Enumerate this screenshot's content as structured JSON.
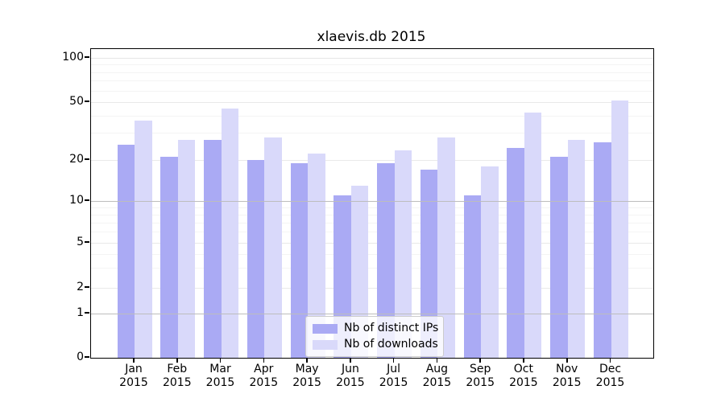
{
  "figure": {
    "title": "xlaevis.db 2015"
  },
  "chart_data": {
    "type": "bar",
    "title": "xlaevis.db 2015",
    "categories": [
      "Jan",
      "Feb",
      "Mar",
      "Apr",
      "May",
      "Jun",
      "Jul",
      "Aug",
      "Sep",
      "Oct",
      "Nov",
      "Dec"
    ],
    "x_tick_second_line": "2015",
    "x_tick_labels": [
      "Jan 2015",
      "Feb 2015",
      "Mar 2015",
      "Apr 2015",
      "May 2015",
      "Jun 2015",
      "Jul 2015",
      "Aug 2015",
      "Sep 2015",
      "Oct 2015",
      "Nov 2015",
      "Dec 2015"
    ],
    "series": [
      {
        "name": "Nb of distinct IPs",
        "color": "#aaaaf4",
        "values": [
          25,
          21,
          27,
          20,
          19,
          11,
          19,
          17,
          11,
          24,
          21,
          26
        ]
      },
      {
        "name": "Nb of downloads",
        "color": "#d9d9fa",
        "values": [
          37,
          27,
          45,
          28,
          22,
          13,
          23,
          28,
          18,
          42,
          27,
          51
        ]
      }
    ],
    "y_ticks": [
      100,
      50,
      20,
      10,
      5,
      2,
      1,
      0
    ],
    "y_tick_labels": [
      "100",
      "50",
      "20",
      "10",
      "5",
      "2",
      "1",
      "0"
    ],
    "y_scale": "log-like (labeled 1-2-5 decades, linear segment 0-1)",
    "xlabel": "",
    "ylabel": "",
    "grid": true,
    "legend": {
      "position": "lower-center",
      "entries": [
        "Nb of distinct IPs",
        "Nb of downloads"
      ]
    },
    "colors": {
      "bar_dark": "#aaaaf4",
      "bar_light": "#d9d9fa",
      "grid_major": "#bdbdbd",
      "grid_light": "#e9e9e9",
      "grid_minor": "#f4f4f4",
      "spine": "#000000"
    }
  }
}
